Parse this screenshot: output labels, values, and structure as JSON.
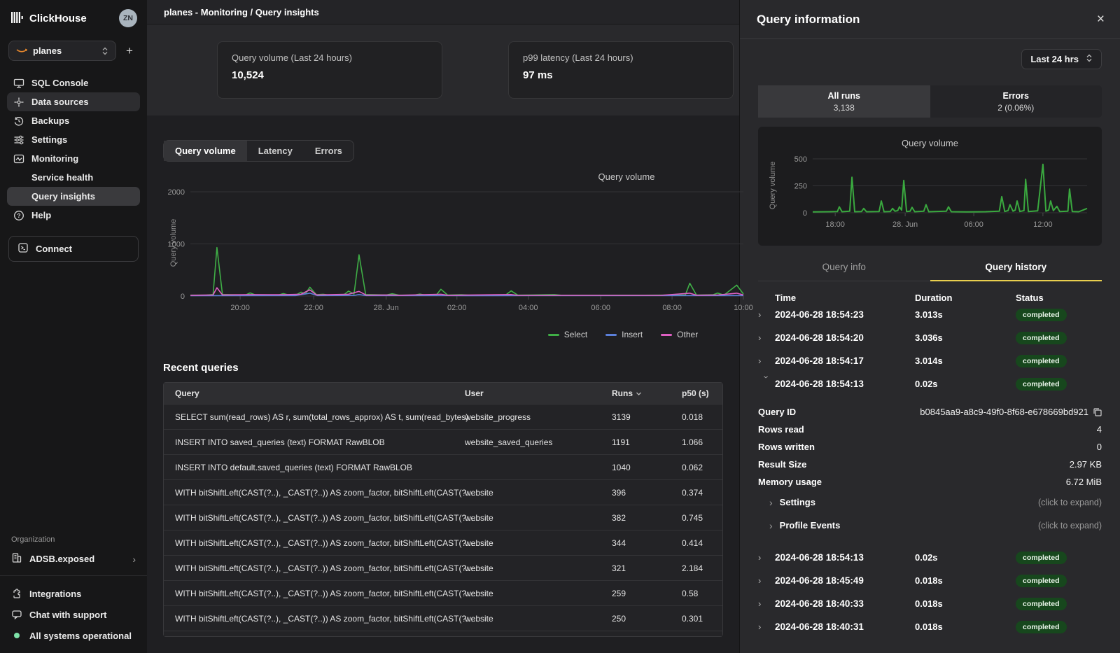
{
  "brand": {
    "name": "ClickHouse",
    "avatar_initials": "ZN"
  },
  "breadcrumb": "planes - Monitoring / Query insights",
  "sidebar": {
    "service_selector": {
      "value": "planes"
    },
    "add_label": "+",
    "items": [
      {
        "label": "SQL Console"
      },
      {
        "label": "Data sources"
      },
      {
        "label": "Backups"
      },
      {
        "label": "Settings"
      },
      {
        "label": "Monitoring"
      },
      {
        "label": "Service health"
      },
      {
        "label": "Query insights"
      },
      {
        "label": "Help"
      }
    ],
    "connect_label": "Connect",
    "organization": {
      "heading": "Organization",
      "name": "ADSB.exposed"
    },
    "footer": [
      {
        "label": "Integrations"
      },
      {
        "label": "Chat with support"
      },
      {
        "label": "All systems operational"
      }
    ]
  },
  "kpis": [
    {
      "label": "Query volume (Last 24 hours)",
      "value": "10,524"
    },
    {
      "label": "p99 latency (Last 24 hours)",
      "value": "97 ms"
    }
  ],
  "main_tabs": [
    {
      "label": "Query volume"
    },
    {
      "label": "Latency"
    },
    {
      "label": "Errors"
    }
  ],
  "recent_queries": {
    "heading": "Recent queries",
    "columns": {
      "query": "Query",
      "user": "User",
      "runs": "Runs",
      "p50": "p50 (s)"
    },
    "rows": [
      {
        "query": "SELECT sum(read_rows) AS r, sum(total_rows_approx) AS t, sum(read_bytes) ...",
        "user": "website_progress",
        "runs": "3139",
        "p50": "0.018"
      },
      {
        "query": "INSERT INTO saved_queries (text) FORMAT RawBLOB",
        "user": "website_saved_queries",
        "runs": "1191",
        "p50": "1.066"
      },
      {
        "query": "INSERT INTO default.saved_queries (text) FORMAT RawBLOB",
        "user": "",
        "runs": "1040",
        "p50": "0.062"
      },
      {
        "query": "WITH bitShiftLeft(CAST(?..), _CAST(?..)) AS zoom_factor, bitShiftLeft(CAST(?.....",
        "user": "website",
        "runs": "396",
        "p50": "0.374"
      },
      {
        "query": "WITH bitShiftLeft(CAST(?..), _CAST(?..)) AS zoom_factor, bitShiftLeft(CAST(?.....",
        "user": "website",
        "runs": "382",
        "p50": "0.745"
      },
      {
        "query": "WITH bitShiftLeft(CAST(?..), _CAST(?..)) AS zoom_factor, bitShiftLeft(CAST(?.....",
        "user": "website",
        "runs": "344",
        "p50": "0.414"
      },
      {
        "query": "WITH bitShiftLeft(CAST(?..), _CAST(?..)) AS zoom_factor, bitShiftLeft(CAST(?.....",
        "user": "website",
        "runs": "321",
        "p50": "2.184"
      },
      {
        "query": "WITH bitShiftLeft(CAST(?..), _CAST(?..)) AS zoom_factor, bitShiftLeft(CAST(?.....",
        "user": "website",
        "runs": "259",
        "p50": "0.58"
      },
      {
        "query": "WITH bitShiftLeft(CAST(?..), _CAST(?..)) AS zoom_factor, bitShiftLeft(CAST(?.....",
        "user": "website",
        "runs": "250",
        "p50": "0.301"
      }
    ]
  },
  "panel": {
    "title": "Query information",
    "time_range": "Last 24 hrs",
    "segments": [
      {
        "label": "All runs",
        "value": "3,138"
      },
      {
        "label": "Errors",
        "value": "2 (0.06%)"
      }
    ],
    "tabs": [
      {
        "label": "Query info"
      },
      {
        "label": "Query history"
      }
    ],
    "history": {
      "columns": {
        "time": "Time",
        "duration": "Duration",
        "status": "Status"
      },
      "rows": [
        {
          "time": "2024-06-28 18:54:23",
          "duration": "3.013s",
          "status": "completed"
        },
        {
          "time": "2024-06-28 18:54:20",
          "duration": "3.036s",
          "status": "completed"
        },
        {
          "time": "2024-06-28 18:54:17",
          "duration": "3.014s",
          "status": "completed"
        },
        {
          "time": "2024-06-28 18:54:13",
          "duration": "0.02s",
          "status": "completed"
        },
        {
          "time": "2024-06-28 18:54:13",
          "duration": "0.02s",
          "status": "completed"
        },
        {
          "time": "2024-06-28 18:45:49",
          "duration": "0.018s",
          "status": "completed"
        },
        {
          "time": "2024-06-28 18:40:33",
          "duration": "0.018s",
          "status": "completed"
        },
        {
          "time": "2024-06-28 18:40:31",
          "duration": "0.018s",
          "status": "completed"
        }
      ],
      "details": {
        "query_id_label": "Query ID",
        "query_id": "b0845aa9-a8c9-49f0-8f68-e678669bd921",
        "rows_read_label": "Rows read",
        "rows_read": "4",
        "rows_written_label": "Rows written",
        "rows_written": "0",
        "result_size_label": "Result Size",
        "result_size": "2.97 KB",
        "memory_usage_label": "Memory usage",
        "memory_usage": "6.72 MiB",
        "settings_label": "Settings",
        "profile_events_label": "Profile Events",
        "expand_hint": "(click to expand)"
      }
    }
  },
  "chart_data": [
    {
      "type": "line",
      "title": "Query volume",
      "ylabel": "Query volume",
      "ylim": [
        0,
        2000
      ],
      "yticks": [
        0,
        1000,
        2000
      ],
      "grid": true,
      "legend_position": "bottom",
      "x_ticks": [
        {
          "pos": 0.09,
          "label": "20:00"
        },
        {
          "pos": 0.223,
          "label": "22:00"
        },
        {
          "pos": 0.354,
          "label": "28. Jun"
        },
        {
          "pos": 0.482,
          "label": "02:00"
        },
        {
          "pos": 0.611,
          "label": "04:00"
        },
        {
          "pos": 0.742,
          "label": "06:00"
        },
        {
          "pos": 0.871,
          "label": "08:00"
        },
        {
          "pos": 1.0,
          "label": "10:00"
        }
      ],
      "series": [
        {
          "name": "Select",
          "color": "#3fae46",
          "points": [
            [
              0,
              18
            ],
            [
              0.03,
              20
            ],
            [
              0.041,
              30
            ],
            [
              0.048,
              930
            ],
            [
              0.058,
              30
            ],
            [
              0.1,
              22
            ],
            [
              0.108,
              60
            ],
            [
              0.118,
              20
            ],
            [
              0.16,
              22
            ],
            [
              0.168,
              48
            ],
            [
              0.178,
              20
            ],
            [
              0.193,
              32
            ],
            [
              0.2,
              75
            ],
            [
              0.208,
              40
            ],
            [
              0.216,
              170
            ],
            [
              0.228,
              25
            ],
            [
              0.24,
              35
            ],
            [
              0.25,
              20
            ],
            [
              0.278,
              28
            ],
            [
              0.286,
              95
            ],
            [
              0.296,
              40
            ],
            [
              0.305,
              790
            ],
            [
              0.317,
              30
            ],
            [
              0.355,
              22
            ],
            [
              0.365,
              45
            ],
            [
              0.377,
              18
            ],
            [
              0.405,
              20
            ],
            [
              0.415,
              38
            ],
            [
              0.425,
              18
            ],
            [
              0.445,
              25
            ],
            [
              0.453,
              130
            ],
            [
              0.465,
              20
            ],
            [
              0.49,
              26
            ],
            [
              0.503,
              18
            ],
            [
              0.57,
              20
            ],
            [
              0.58,
              100
            ],
            [
              0.592,
              18
            ],
            [
              0.648,
              26
            ],
            [
              0.658,
              28
            ],
            [
              0.67,
              16
            ],
            [
              0.73,
              15
            ],
            [
              0.82,
              16
            ],
            [
              0.895,
              22
            ],
            [
              0.903,
              245
            ],
            [
              0.915,
              20
            ],
            [
              0.945,
              24
            ],
            [
              0.953,
              58
            ],
            [
              0.965,
              20
            ],
            [
              0.988,
              210
            ],
            [
              1,
              40
            ]
          ]
        },
        {
          "name": "Insert",
          "color": "#5b7fd9",
          "points": [
            [
              0,
              8
            ],
            [
              0.19,
              10
            ],
            [
              0.216,
              55
            ],
            [
              0.23,
              9
            ],
            [
              0.296,
              12
            ],
            [
              0.305,
              30
            ],
            [
              0.318,
              9
            ],
            [
              0.5,
              8
            ],
            [
              0.75,
              9
            ],
            [
              1,
              9
            ]
          ]
        },
        {
          "name": "Other",
          "color": "#de5fc2",
          "points": [
            [
              0,
              15
            ],
            [
              0.041,
              22
            ],
            [
              0.048,
              160
            ],
            [
              0.058,
              22
            ],
            [
              0.108,
              28
            ],
            [
              0.168,
              26
            ],
            [
              0.2,
              35
            ],
            [
              0.216,
              120
            ],
            [
              0.228,
              22
            ],
            [
              0.286,
              35
            ],
            [
              0.305,
              90
            ],
            [
              0.318,
              18
            ],
            [
              0.365,
              22
            ],
            [
              0.377,
              15
            ],
            [
              0.453,
              35
            ],
            [
              0.465,
              15
            ],
            [
              0.58,
              30
            ],
            [
              0.592,
              14
            ],
            [
              0.73,
              13
            ],
            [
              0.85,
              14
            ],
            [
              0.903,
              55
            ],
            [
              0.915,
              16
            ],
            [
              0.953,
              20
            ],
            [
              0.988,
              55
            ],
            [
              1,
              22
            ]
          ]
        }
      ]
    },
    {
      "type": "line",
      "title": "Query volume",
      "ylabel": "Query volume",
      "ylim": [
        0,
        500
      ],
      "yticks": [
        0,
        250,
        500
      ],
      "grid": true,
      "legend_position": "none",
      "x_ticks": [
        {
          "pos": 0.082,
          "label": "18:00"
        },
        {
          "pos": 0.337,
          "label": "28. Jun"
        },
        {
          "pos": 0.587,
          "label": "06:00"
        },
        {
          "pos": 0.839,
          "label": "12:00"
        }
      ],
      "series": [
        {
          "name": "Query volume",
          "color": "#3aa93f",
          "points": [
            [
              0,
              8
            ],
            [
              0.06,
              10
            ],
            [
              0.09,
              12
            ],
            [
              0.097,
              55
            ],
            [
              0.107,
              10
            ],
            [
              0.135,
              14
            ],
            [
              0.143,
              330
            ],
            [
              0.153,
              10
            ],
            [
              0.178,
              12
            ],
            [
              0.186,
              40
            ],
            [
              0.196,
              10
            ],
            [
              0.242,
              12
            ],
            [
              0.25,
              110
            ],
            [
              0.26,
              10
            ],
            [
              0.283,
              12
            ],
            [
              0.291,
              40
            ],
            [
              0.3,
              14
            ],
            [
              0.31,
              20
            ],
            [
              0.316,
              55
            ],
            [
              0.324,
              25
            ],
            [
              0.332,
              300
            ],
            [
              0.342,
              12
            ],
            [
              0.355,
              15
            ],
            [
              0.362,
              50
            ],
            [
              0.372,
              10
            ],
            [
              0.405,
              15
            ],
            [
              0.413,
              75
            ],
            [
              0.423,
              10
            ],
            [
              0.487,
              14
            ],
            [
              0.495,
              55
            ],
            [
              0.505,
              10
            ],
            [
              0.56,
              8
            ],
            [
              0.63,
              10
            ],
            [
              0.68,
              14
            ],
            [
              0.689,
              150
            ],
            [
              0.7,
              12
            ],
            [
              0.712,
              20
            ],
            [
              0.719,
              75
            ],
            [
              0.73,
              15
            ],
            [
              0.738,
              25
            ],
            [
              0.745,
              110
            ],
            [
              0.755,
              12
            ],
            [
              0.77,
              20
            ],
            [
              0.776,
              310
            ],
            [
              0.786,
              12
            ],
            [
              0.82,
              18
            ],
            [
              0.839,
              450
            ],
            [
              0.85,
              15
            ],
            [
              0.86,
              25
            ],
            [
              0.867,
              110
            ],
            [
              0.877,
              20
            ],
            [
              0.89,
              60
            ],
            [
              0.9,
              12
            ],
            [
              0.93,
              15
            ],
            [
              0.936,
              220
            ],
            [
              0.946,
              12
            ],
            [
              0.97,
              10
            ],
            [
              1,
              40
            ]
          ]
        }
      ]
    }
  ],
  "colors": {
    "select_green": "#3fae46",
    "insert_blue": "#5b7fd9",
    "other_pink": "#de5fc2",
    "tab_underline_yellow": "#e9cf4e",
    "status_green_bg": "#17471d",
    "status_green_text": "#e9f4e9",
    "operational_dot": "#7ee2a8"
  }
}
